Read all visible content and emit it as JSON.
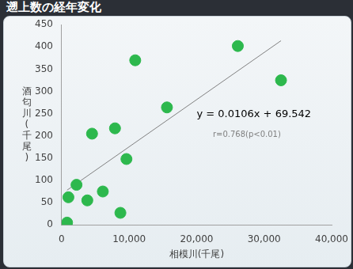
{
  "chart_data": {
    "type": "scatter",
    "title": "遡上数の経年変化",
    "x_label": "相模川(千尾)",
    "y_label": "酒匂川(千尾)",
    "x": [
      800,
      1000,
      2200,
      3800,
      4500,
      6100,
      7900,
      8700,
      9600,
      10900,
      15600,
      26100,
      32500
    ],
    "values": [
      5,
      62,
      90,
      55,
      205,
      75,
      217,
      27,
      148,
      370,
      264,
      402,
      325
    ],
    "color": "#2db84d",
    "marker": "circle",
    "xlim": [
      0,
      40000
    ],
    "xticks": [
      0,
      {
        "value": 10000,
        "label": "10,000"
      },
      {
        "value": 20000,
        "label": "20,000"
      },
      {
        "value": 30000,
        "label": "30,000"
      },
      {
        "value": 40000,
        "label": "40,000"
      }
    ],
    "ylim": [
      0,
      450
    ],
    "yticks": [
      0,
      50,
      100,
      150,
      200,
      250,
      300,
      350,
      400,
      450
    ],
    "grid": false,
    "trendline": {
      "x": [
        800,
        32500
      ],
      "y": [
        78,
        414
      ],
      "color": "#808080"
    },
    "annotations": [
      "y = 0.0106x + 69.542",
      "r=0.768(p<0.01)"
    ]
  }
}
